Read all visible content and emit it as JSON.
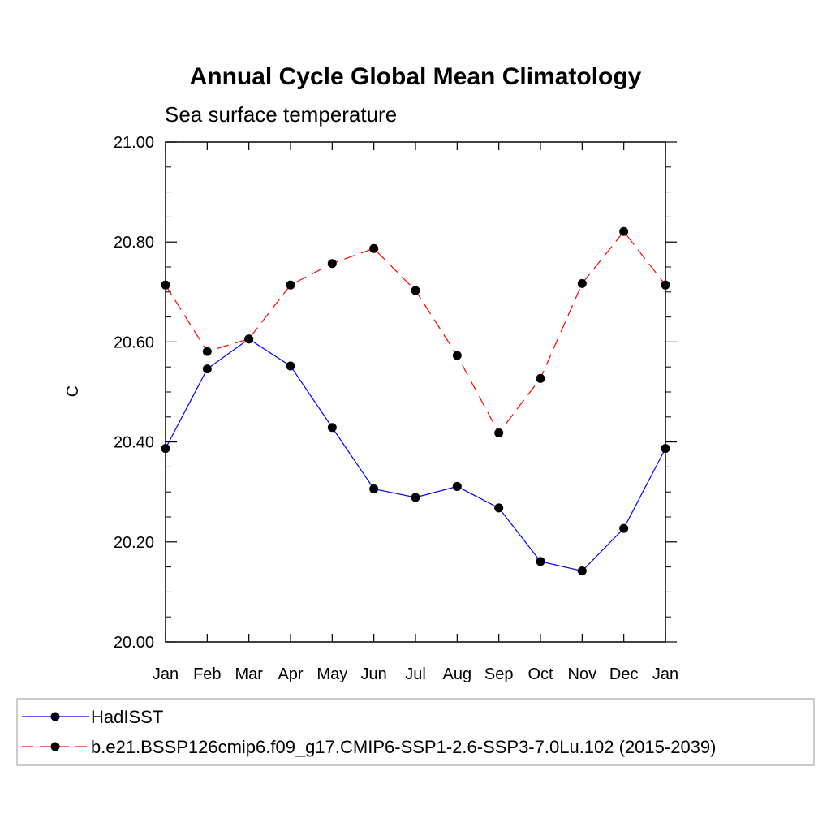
{
  "chart_data": {
    "type": "line",
    "title": "Annual Cycle Global Mean Climatology",
    "subtitle": "Sea surface temperature",
    "xlabel": "",
    "ylabel": "C",
    "categories": [
      "Jan",
      "Feb",
      "Mar",
      "Apr",
      "May",
      "Jun",
      "Jul",
      "Aug",
      "Sep",
      "Oct",
      "Nov",
      "Dec",
      "Jan"
    ],
    "ylim": [
      20.0,
      21.0
    ],
    "yticks": [
      "20.00",
      "20.20",
      "20.40",
      "20.60",
      "20.80",
      "21.00"
    ],
    "grid": false,
    "legend_position": "bottom",
    "series": [
      {
        "name": "HadISST",
        "color": "#0000ff",
        "dash": "solid",
        "values": [
          20.387,
          20.546,
          20.606,
          20.552,
          20.429,
          20.306,
          20.289,
          20.311,
          20.268,
          20.161,
          20.142,
          20.227,
          20.387
        ]
      },
      {
        "name": "b.e21.BSSP126cmip6.f09_g17.CMIP6-SSP1-2.6-SSP3-7.0Lu.102 (2015-2039)",
        "color": "#ff0000",
        "dash": "dashed",
        "values": [
          20.714,
          20.581,
          20.606,
          20.714,
          20.757,
          20.787,
          20.703,
          20.573,
          20.418,
          20.527,
          20.717,
          20.821,
          20.714
        ]
      }
    ]
  }
}
